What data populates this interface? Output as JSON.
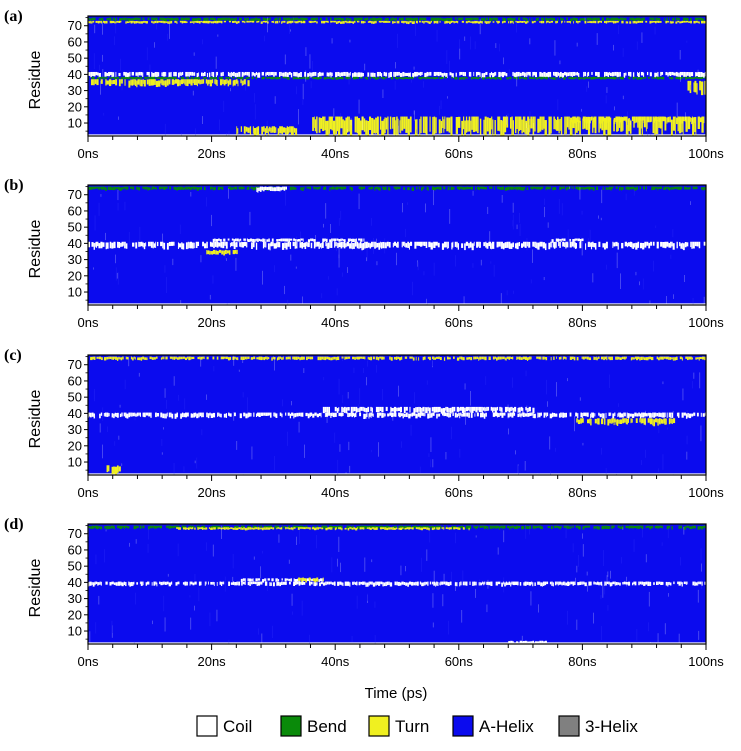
{
  "colors": {
    "Coil": "#ffffff",
    "Bend": "#0a8a0a",
    "Turn": "#f0f020",
    "A-Helix": "#0b0bee",
    "3-Helix": "#808080"
  },
  "chart_data": {
    "type": "heatmap",
    "xlabel": "Time (ps)",
    "ylabel": "Residue",
    "x_tick_labels": [
      "0ns",
      "20ns",
      "40ns",
      "60ns",
      "80ns",
      "100ns"
    ],
    "x_tick_values": [
      0,
      20,
      40,
      60,
      80,
      100
    ],
    "xlim": [
      0,
      100
    ],
    "y_tick_labels": [
      "10",
      "20",
      "30",
      "40",
      "50",
      "60",
      "70"
    ],
    "y_tick_values": [
      10,
      20,
      30,
      40,
      50,
      60,
      70
    ],
    "ylim": [
      2,
      76
    ],
    "legend": {
      "position": "bottom",
      "entries": [
        "Coil",
        "Bend",
        "Turn",
        "A-Helix",
        "3-Helix"
      ]
    },
    "panels": [
      {
        "label": "(a)",
        "regions": [
          {
            "state": "Coil",
            "x": [
              0,
              100
            ],
            "y": [
              38.5,
              41.5
            ]
          },
          {
            "state": "Bend",
            "x": [
              0,
              100
            ],
            "y": [
              37,
              38.5
            ]
          },
          {
            "state": "Turn",
            "x": [
              0,
              26
            ],
            "y": [
              33,
              37
            ]
          },
          {
            "state": "Bend",
            "x": [
              0,
              100
            ],
            "y": [
              73,
              75
            ]
          },
          {
            "state": "Turn",
            "x": [
              0,
              100
            ],
            "y": [
              71.5,
              73
            ]
          },
          {
            "state": "Turn",
            "x": [
              36,
              100
            ],
            "y": [
              3,
              14
            ]
          },
          {
            "state": "Turn",
            "x": [
              24,
              34
            ],
            "y": [
              3,
              8
            ]
          },
          {
            "state": "Turn",
            "x": [
              78,
              100
            ],
            "y": [
              10,
              14
            ]
          },
          {
            "state": "Turn",
            "x": [
              97,
              100
            ],
            "y": [
              28,
              36
            ]
          }
        ]
      },
      {
        "label": "(b)",
        "regions": [
          {
            "state": "Coil",
            "x": [
              0,
              100
            ],
            "y": [
              37,
              41
            ]
          },
          {
            "state": "Coil",
            "x": [
              20,
              45
            ],
            "y": [
              41,
              43
            ]
          },
          {
            "state": "Coil",
            "x": [
              75,
              80
            ],
            "y": [
              41,
              43
            ]
          },
          {
            "state": "Turn",
            "x": [
              19,
              24
            ],
            "y": [
              33,
              36
            ]
          },
          {
            "state": "Bend",
            "x": [
              0,
              100
            ],
            "y": [
              73,
              75
            ]
          },
          {
            "state": "Coil",
            "x": [
              27,
              32
            ],
            "y": [
              72,
              75
            ]
          }
        ]
      },
      {
        "label": "(c)",
        "regions": [
          {
            "state": "Coil",
            "x": [
              0,
              100
            ],
            "y": [
              37.5,
              40.5
            ]
          },
          {
            "state": "Coil",
            "x": [
              38,
              72
            ],
            "y": [
              40.5,
              44
            ]
          },
          {
            "state": "Turn",
            "x": [
              79,
              95
            ],
            "y": [
              33,
              37
            ]
          },
          {
            "state": "Turn",
            "x": [
              3,
              5
            ],
            "y": [
              3,
              8
            ]
          },
          {
            "state": "Turn",
            "x": [
              0,
              100
            ],
            "y": [
              73,
              75
            ]
          }
        ]
      },
      {
        "label": "(d)",
        "regions": [
          {
            "state": "Coil",
            "x": [
              0,
              100
            ],
            "y": [
              38,
              40.5
            ]
          },
          {
            "state": "Coil",
            "x": [
              24,
              38
            ],
            "y": [
              40.5,
              42.5
            ]
          },
          {
            "state": "Bend",
            "x": [
              0,
              100
            ],
            "y": [
              73,
              75
            ]
          },
          {
            "state": "Turn",
            "x": [
              14,
              62
            ],
            "y": [
              72.5,
              74
            ]
          },
          {
            "state": "Turn",
            "x": [
              34,
              38
            ],
            "y": [
              40.5,
              43
            ]
          },
          {
            "state": "Coil",
            "x": [
              68,
              74
            ],
            "y": [
              2,
              4
            ]
          }
        ]
      }
    ]
  }
}
